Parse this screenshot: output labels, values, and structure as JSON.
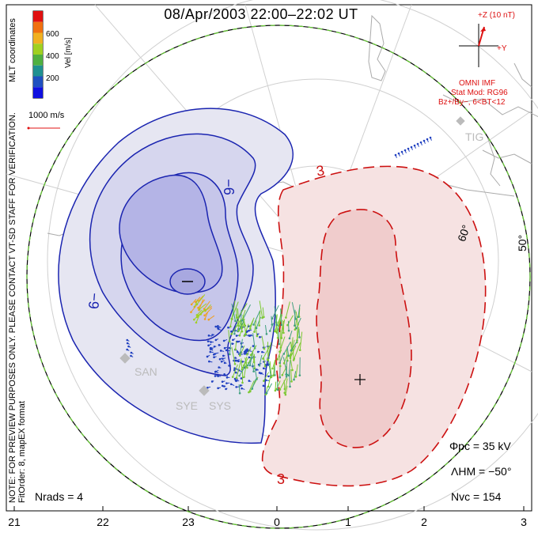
{
  "header": {
    "title": "08/Apr/2003 22:00–22:02 UT"
  },
  "side_notes": {
    "coords": "MLT coordinates",
    "preview": "NOTE: FOR PREVIEW PURPOSES ONLY. PLEASE CONTACT VT-SD STAFF FOR VERIFICATION.",
    "fit": "FitOrder: 8, mapEX format"
  },
  "colorbar": {
    "title": "Vel [m/s]",
    "ticks": [
      "600",
      "400",
      "200"
    ],
    "colors": [
      "#e01010",
      "#f07010",
      "#f0b020",
      "#a0d020",
      "#50b040",
      "#209090",
      "#2050c0",
      "#1010e0"
    ]
  },
  "scale_vector": {
    "label": "1000 m/s"
  },
  "imf": {
    "axis_z": "+Z (10 nT)",
    "axis_y": "+Y",
    "source": "OMNI IMF",
    "model": "Stat Mod: RG96",
    "condition": "Bz+/By−, 6<BT<12"
  },
  "stations": [
    "TIG",
    "SAN",
    "SYE",
    "SYS"
  ],
  "latitude_labels": [
    "60°",
    "50°"
  ],
  "mlt_ticks": [
    "21",
    "22",
    "23",
    "0",
    "1",
    "2",
    "3"
  ],
  "contours": {
    "negative": [
      "−9",
      "−6",
      "−"
    ],
    "positive": [
      "3",
      "+",
      "3"
    ]
  },
  "stats": {
    "phi_pc": "Φpc = 35 kV",
    "lambda_hm": "ΛHM = −50°",
    "n_vc": "Nvc = 154",
    "n_rads": "Nrads = 4"
  },
  "colors": {
    "negative_fill_light": "#e6e6f2",
    "negative_fill_dark": "#b4b4e6",
    "negative_line": "#1a24b0",
    "positive_fill_light": "#f6e2e2",
    "positive_fill_dark": "#f0cccc",
    "positive_line": "#cc1010",
    "boundary": "#66cc33"
  }
}
